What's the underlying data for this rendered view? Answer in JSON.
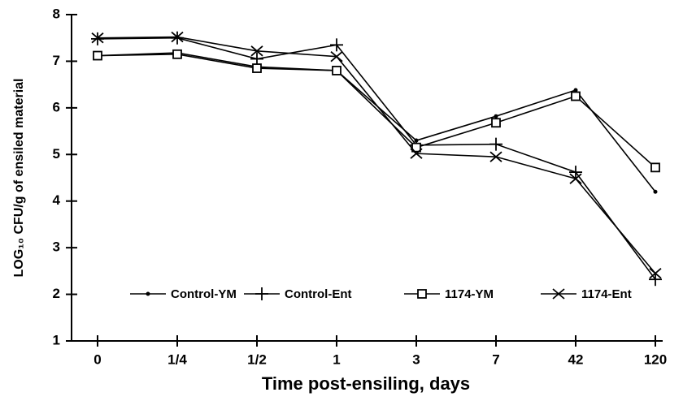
{
  "chart_data": {
    "type": "line",
    "xlabel": "Time post-ensiling, days",
    "ylabel": "LOG₁₀ CFU/g of ensiled material",
    "categories": [
      "0",
      "1/4",
      "1/2",
      "1",
      "3",
      "7",
      "42",
      "120"
    ],
    "series": [
      {
        "name": "Control-YM",
        "color": "#000000",
        "marker": "dot",
        "values": [
          7.12,
          7.18,
          6.88,
          6.8,
          5.3,
          5.82,
          6.38,
          4.2
        ]
      },
      {
        "name": "Control-Ent",
        "color": "#000000",
        "marker": "plus",
        "values": [
          7.48,
          7.5,
          7.05,
          7.35,
          5.2,
          5.22,
          4.62,
          2.32
        ]
      },
      {
        "name": "1174-YM",
        "color": "#000000",
        "marker": "square",
        "values": [
          7.12,
          7.15,
          6.85,
          6.8,
          5.15,
          5.68,
          6.25,
          4.72
        ]
      },
      {
        "name": "1174-Ent",
        "color": "#000000",
        "marker": "x",
        "values": [
          7.5,
          7.52,
          7.22,
          7.1,
          5.02,
          4.95,
          4.48,
          2.45
        ]
      }
    ],
    "ylim": [
      1,
      8
    ],
    "yticks": [
      1,
      2,
      3,
      4,
      5,
      6,
      7,
      8
    ],
    "grid": false
  }
}
